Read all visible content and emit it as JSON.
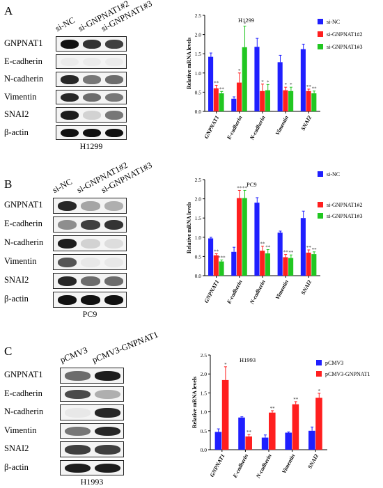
{
  "panels": [
    {
      "letter": "A",
      "cell_line": "H1299",
      "lanes": [
        "si-NC",
        "si-GNPNAT1#2",
        "si-GNPNAT1#3"
      ],
      "blot_rows": [
        {
          "label": "GNPNAT1",
          "bands": [
            1.0,
            0.85,
            0.8
          ]
        },
        {
          "label": "E-cadherin",
          "bands": [
            0.0,
            0.0,
            0.0
          ]
        },
        {
          "label": "N-cadherin",
          "bands": [
            0.9,
            0.55,
            0.6
          ]
        },
        {
          "label": "Vimentin",
          "bands": [
            0.9,
            0.6,
            0.55
          ]
        },
        {
          "label": "SNAI2",
          "bands": [
            0.95,
            0.15,
            0.55
          ]
        },
        {
          "label": "β-actin",
          "bands": [
            1.0,
            1.0,
            1.0
          ]
        }
      ]
    },
    {
      "letter": "B",
      "cell_line": "PC9",
      "lanes": [
        "si-NC",
        "si-GNPNAT1#2",
        "si-GNPNAT1#3"
      ],
      "blot_rows": [
        {
          "label": "GNPNAT1",
          "bands": [
            0.9,
            0.35,
            0.3
          ]
        },
        {
          "label": "E-cadherin",
          "bands": [
            0.45,
            0.8,
            0.85
          ]
        },
        {
          "label": "N-cadherin",
          "bands": [
            0.95,
            0.15,
            0.1
          ]
        },
        {
          "label": "Vimentin",
          "bands": [
            0.7,
            0.05,
            0.05
          ]
        },
        {
          "label": "SNAI2",
          "bands": [
            0.9,
            0.6,
            0.6
          ]
        },
        {
          "label": "β-actin",
          "bands": [
            1.0,
            1.0,
            1.0
          ]
        }
      ]
    },
    {
      "letter": "C",
      "cell_line": "H1993",
      "lanes": [
        "pCMV3",
        "pCMV3-GNPNAT1"
      ],
      "blot_rows": [
        {
          "label": "GNPNAT1",
          "bands": [
            0.6,
            0.95
          ]
        },
        {
          "label": "E-cadherin",
          "bands": [
            0.75,
            0.3
          ]
        },
        {
          "label": "N-cadherin",
          "bands": [
            0.05,
            0.9
          ]
        },
        {
          "label": "Vimentin",
          "bands": [
            0.55,
            0.9
          ]
        },
        {
          "label": "SNAI2",
          "bands": [
            0.8,
            0.8
          ]
        },
        {
          "label": "β-actin",
          "bands": [
            0.95,
            0.95
          ]
        }
      ]
    }
  ],
  "chart_data": [
    {
      "type": "bar",
      "title": "H1299",
      "ylabel": "Relative mRNA levels",
      "ylim": [
        0,
        2.5
      ],
      "yticks": [
        "0.0",
        "0.5",
        "1.0",
        "1.5",
        "2.0",
        "2.5"
      ],
      "categories": [
        "GNPNAT1",
        "E-cadherin",
        "N-cadherin",
        "Vimentin",
        "SNAI2"
      ],
      "legend_position": "top-right",
      "series": [
        {
          "name": "si-NC",
          "color": "#1f1fff",
          "values": [
            1.42,
            0.33,
            1.68,
            1.28,
            1.62
          ],
          "errors": [
            0.1,
            0.05,
            0.22,
            0.18,
            0.13
          ],
          "marks": [
            "",
            "",
            "",
            "",
            ""
          ]
        },
        {
          "name": "si-GNPNAT1#2",
          "color": "#ff1f1f",
          "values": [
            0.6,
            0.75,
            0.53,
            0.55,
            0.53
          ],
          "errors": [
            0.08,
            0.25,
            0.18,
            0.08,
            0.05
          ],
          "marks": [
            "**",
            "*",
            "*",
            "*",
            "**"
          ]
        },
        {
          "name": "si-GNPNAT1#3",
          "color": "#21c721",
          "values": [
            0.47,
            1.67,
            0.55,
            0.53,
            0.47
          ],
          "errors": [
            0.05,
            0.55,
            0.15,
            0.1,
            0.06
          ],
          "marks": [
            "**",
            "*",
            "*",
            "*",
            "**"
          ]
        }
      ]
    },
    {
      "type": "bar",
      "title": "PC9",
      "ylabel": "Relative mRNA levels",
      "ylim": [
        0,
        2.5
      ],
      "yticks": [
        "0.0",
        "0.5",
        "1.0",
        "1.5",
        "2.0",
        "2.5"
      ],
      "categories": [
        "GNPNAT1",
        "E-cadherin",
        "N-cadherin",
        "Vimentin",
        "SNAI2"
      ],
      "legend_position": "top-right",
      "series": [
        {
          "name": "si-NC",
          "color": "#1f1fff",
          "values": [
            0.97,
            0.62,
            1.9,
            1.12,
            1.5
          ],
          "errors": [
            0.03,
            0.12,
            0.13,
            0.04,
            0.18
          ],
          "marks": [
            "",
            "",
            "",
            "",
            ""
          ]
        },
        {
          "name": "si-GNPNAT1#2",
          "color": "#ff1f1f",
          "values": [
            0.53,
            2.02,
            0.65,
            0.48,
            0.6
          ],
          "errors": [
            0.04,
            0.2,
            0.12,
            0.07,
            0.07
          ],
          "marks": [
            "**",
            "**",
            "**",
            "**",
            "**"
          ]
        },
        {
          "name": "si-GNPNAT1#3",
          "color": "#21c721",
          "values": [
            0.37,
            2.02,
            0.58,
            0.46,
            0.56
          ],
          "errors": [
            0.04,
            0.2,
            0.1,
            0.08,
            0.06
          ],
          "marks": [
            "***",
            "**",
            "**",
            "**",
            "**"
          ]
        }
      ]
    },
    {
      "type": "bar",
      "title": "H1993",
      "ylabel": "Relative mRNA levels",
      "ylim": [
        0,
        2.5
      ],
      "yticks": [
        "0.0",
        "0.5",
        "1.0",
        "1.5",
        "2.0",
        "2.5"
      ],
      "categories": [
        "GNPNAT1",
        "E-cadherin",
        "N-cadherin",
        "Vimentin",
        "SNAI2"
      ],
      "legend_position": "top-right",
      "series": [
        {
          "name": "pCMV3",
          "color": "#1f1fff",
          "values": [
            0.47,
            0.85,
            0.32,
            0.45,
            0.5
          ],
          "errors": [
            0.08,
            0.02,
            0.07,
            0.02,
            0.1
          ],
          "marks": [
            "",
            "",
            "",
            "",
            ""
          ]
        },
        {
          "name": "pCMV3-GNPNAT1",
          "color": "#ff1f1f",
          "values": [
            1.84,
            0.35,
            0.98,
            1.2,
            1.37
          ],
          "errors": [
            0.35,
            0.05,
            0.05,
            0.07,
            0.12
          ],
          "marks": [
            "*",
            "**",
            "**",
            "**",
            "*"
          ]
        }
      ]
    }
  ]
}
